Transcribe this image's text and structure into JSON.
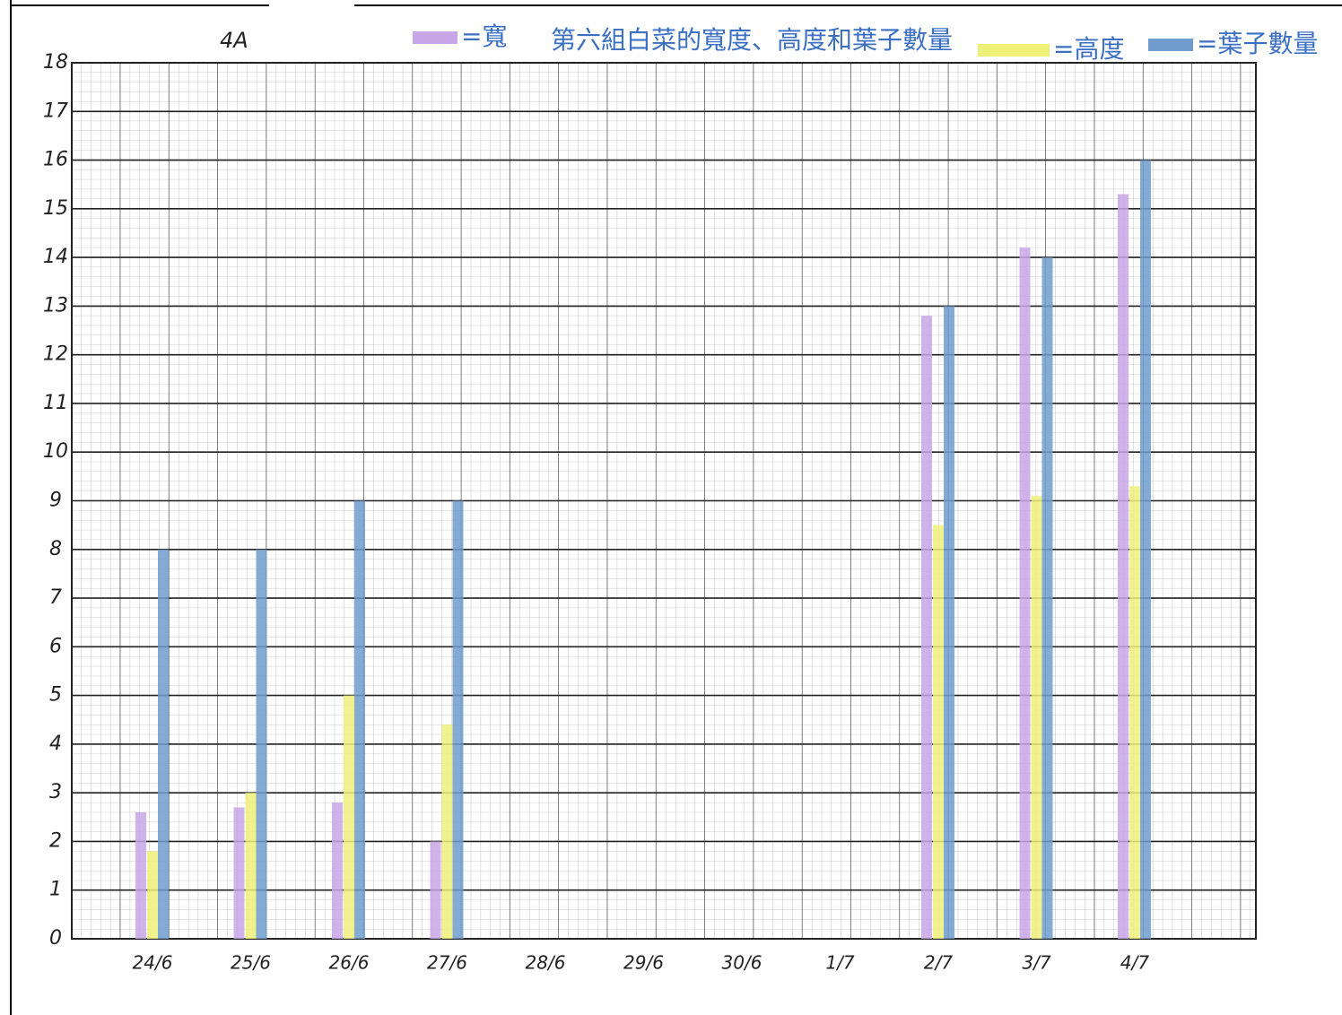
{
  "class_label": "4A",
  "chart_data": {
    "type": "bar",
    "title": "第六組白菜的寬度、高度和葉子數量",
    "categories": [
      "24/6",
      "25/6",
      "26/6",
      "27/6",
      "28/6",
      "29/6",
      "30/6",
      "1/7",
      "2/7",
      "3/7",
      "4/7"
    ],
    "series": [
      {
        "name": "=寬",
        "color": "#c9a6e8",
        "values": [
          2.6,
          2.7,
          2.8,
          2,
          null,
          null,
          null,
          null,
          12.8,
          14.2,
          15.3
        ]
      },
      {
        "name": "=高度",
        "color": "#eef07a",
        "values": [
          1.8,
          3,
          5,
          4.4,
          null,
          null,
          null,
          null,
          8.5,
          9.1,
          9.3
        ]
      },
      {
        "name": "=葉子數量",
        "color": "#6f9ccc",
        "values": [
          8,
          8,
          9,
          9,
          null,
          null,
          null,
          null,
          13,
          14,
          16
        ]
      }
    ],
    "ylim": [
      0,
      18
    ],
    "yticks": [
      0,
      1,
      2,
      3,
      4,
      5,
      6,
      7,
      8,
      9,
      10,
      11,
      12,
      13,
      14,
      15,
      16,
      17,
      18
    ],
    "grid": true
  }
}
